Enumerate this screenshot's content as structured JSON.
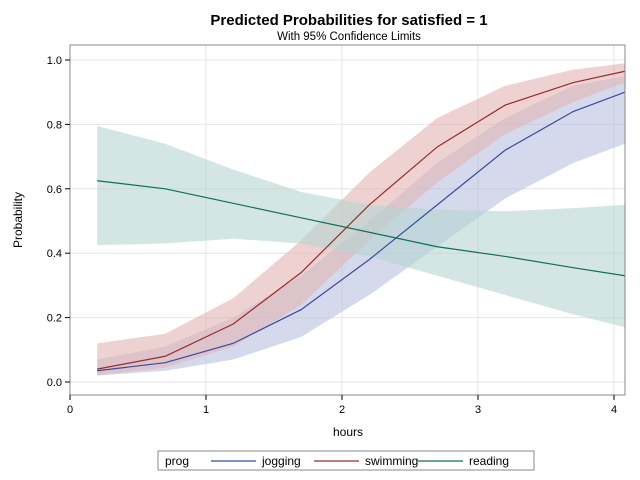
{
  "chart_data": {
    "type": "line",
    "title": "Predicted Probabilities for satisfied = 1",
    "subtitle": "With 95% Confidence Limits",
    "xlabel": "hours",
    "ylabel": "Probability",
    "xlim": [
      0,
      4.1
    ],
    "ylim": [
      0,
      1
    ],
    "xticks": [
      0,
      1,
      2,
      3,
      4
    ],
    "xtick_labels": [
      "0",
      "1",
      "2",
      "3",
      "4"
    ],
    "yticks": [
      0,
      0.2,
      0.4,
      0.6,
      0.8,
      1.0
    ],
    "ytick_labels": [
      "0.0",
      "0.2",
      "0.4",
      "0.6",
      "0.8",
      "1.0"
    ],
    "grid": true,
    "legend_title": "prog",
    "legend_position": "bottom",
    "x": [
      0.2,
      0.7,
      1.2,
      1.7,
      2.2,
      2.7,
      3.2,
      3.7,
      4.08
    ],
    "series": [
      {
        "name": "jogging",
        "color": "#3b4aa0",
        "band_color": "#b8c0dd",
        "values": [
          0.035,
          0.06,
          0.12,
          0.225,
          0.38,
          0.55,
          0.72,
          0.84,
          0.9
        ],
        "lower": [
          0.02,
          0.035,
          0.07,
          0.14,
          0.27,
          0.42,
          0.57,
          0.68,
          0.74
        ],
        "upper": [
          0.07,
          0.11,
          0.2,
          0.33,
          0.5,
          0.68,
          0.82,
          0.92,
          0.95
        ]
      },
      {
        "name": "swimming",
        "color": "#9c2a2a",
        "band_color": "#e3b4b4",
        "values": [
          0.04,
          0.08,
          0.18,
          0.34,
          0.55,
          0.73,
          0.86,
          0.93,
          0.965
        ],
        "lower": [
          0.02,
          0.045,
          0.11,
          0.24,
          0.44,
          0.62,
          0.77,
          0.87,
          0.93
        ],
        "upper": [
          0.12,
          0.15,
          0.26,
          0.44,
          0.65,
          0.82,
          0.92,
          0.97,
          0.99
        ]
      },
      {
        "name": "reading",
        "color": "#0f6e5e",
        "band_color": "#b5d6d0",
        "values": [
          0.625,
          0.6,
          0.555,
          0.51,
          0.465,
          0.42,
          0.39,
          0.355,
          0.33
        ],
        "lower": [
          0.425,
          0.43,
          0.445,
          0.43,
          0.39,
          0.33,
          0.27,
          0.21,
          0.17
        ],
        "upper": [
          0.795,
          0.74,
          0.66,
          0.59,
          0.55,
          0.535,
          0.53,
          0.54,
          0.55
        ]
      }
    ]
  }
}
